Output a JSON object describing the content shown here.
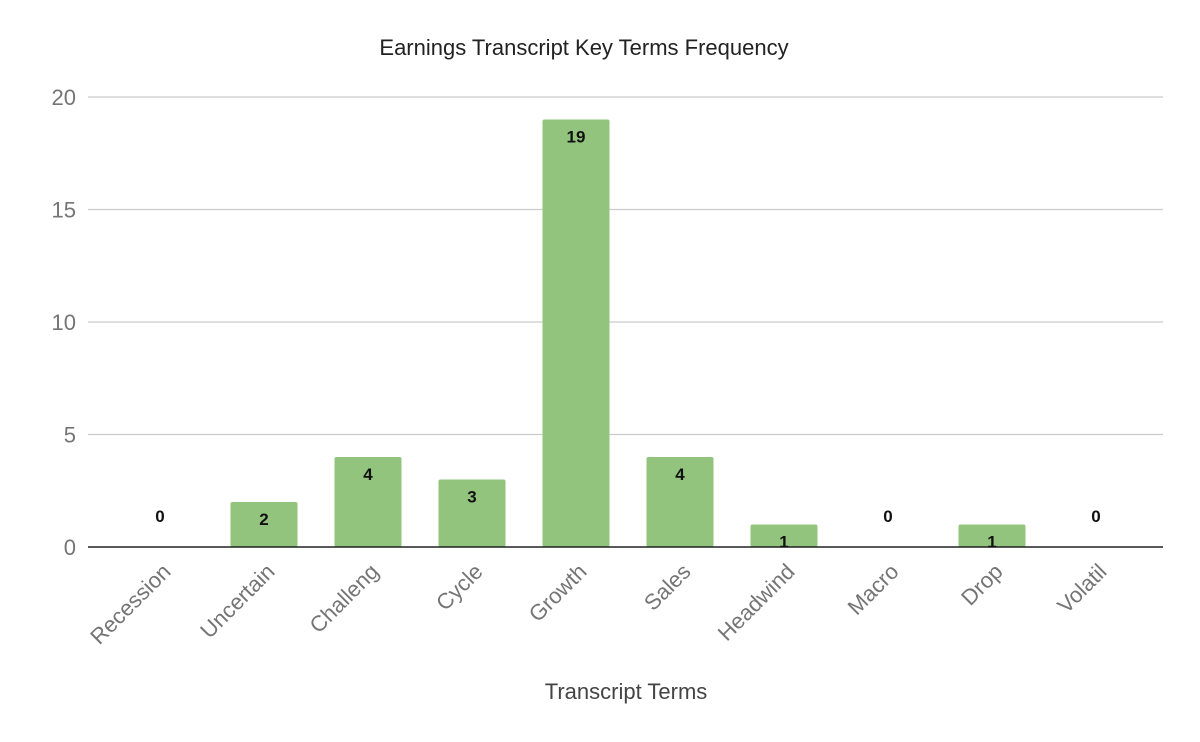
{
  "chart_data": {
    "type": "bar",
    "title": "Earnings Transcript Key Terms Frequency",
    "xlabel": "Transcript Terms",
    "ylabel": "",
    "categories": [
      "Recession",
      "Uncertain",
      "Challeng",
      "Cycle",
      "Growth",
      "Sales",
      "Headwind",
      "Macro",
      "Drop",
      "Volatil"
    ],
    "values": [
      0,
      2,
      4,
      3,
      19,
      4,
      1,
      0,
      1,
      0
    ],
    "ylim": [
      0,
      20
    ],
    "yticks": [
      0,
      5,
      10,
      15,
      20
    ],
    "grid": true,
    "legend": "none",
    "bar_color": "#93c47d"
  }
}
